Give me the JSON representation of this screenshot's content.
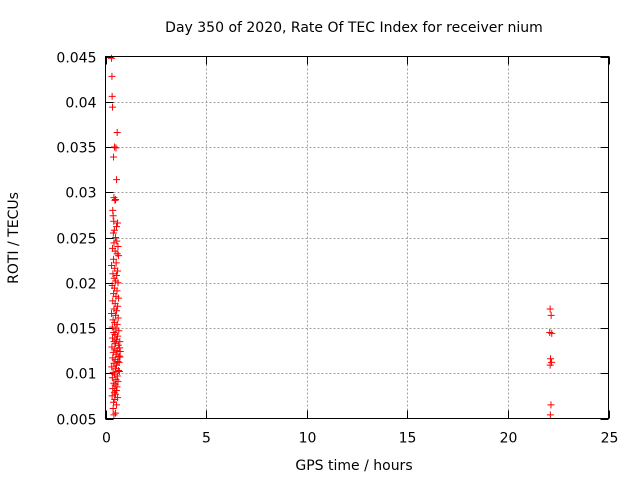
{
  "chart_data": {
    "type": "scatter",
    "title": "Day 350 of 2020, Rate Of TEC Index for receiver nium",
    "xlabel": "GPS time / hours",
    "ylabel": "ROTI / TECUs",
    "xlim": [
      0,
      25
    ],
    "ylim": [
      0.005,
      0.045
    ],
    "xticks": [
      0,
      5,
      10,
      15,
      20,
      25
    ],
    "xtick_labels": [
      "0",
      "5",
      "10",
      "15",
      "20",
      "25"
    ],
    "yticks": [
      0.005,
      0.01,
      0.015,
      0.02,
      0.025,
      0.03,
      0.035,
      0.04,
      0.045
    ],
    "ytick_labels": [
      "0.005",
      "0.01",
      "0.015",
      "0.02",
      "0.025",
      "0.03",
      "0.035",
      "0.04",
      "0.045"
    ],
    "grid": true,
    "marker": "plus",
    "marker_color": "#ff0000",
    "series": [
      {
        "name": "ROTI",
        "points": [
          [
            0.3,
            0.0448
          ],
          [
            0.32,
            0.0428
          ],
          [
            0.33,
            0.0406
          ],
          [
            0.35,
            0.0394
          ],
          [
            0.58,
            0.0366
          ],
          [
            0.45,
            0.035
          ],
          [
            0.52,
            0.0349
          ],
          [
            0.4,
            0.0339
          ],
          [
            0.55,
            0.0314
          ],
          [
            0.42,
            0.0294
          ],
          [
            0.5,
            0.0292
          ],
          [
            0.47,
            0.0291
          ],
          [
            0.36,
            0.028
          ],
          [
            0.38,
            0.0274
          ],
          [
            0.41,
            0.0268
          ],
          [
            0.6,
            0.0266
          ],
          [
            0.55,
            0.0262
          ],
          [
            0.44,
            0.0258
          ],
          [
            0.39,
            0.0255
          ],
          [
            0.5,
            0.025
          ],
          [
            0.56,
            0.0246
          ],
          [
            0.42,
            0.0244
          ],
          [
            0.62,
            0.024
          ],
          [
            0.35,
            0.0238
          ],
          [
            0.48,
            0.0235
          ],
          [
            0.58,
            0.0232
          ],
          [
            0.65,
            0.023
          ],
          [
            0.4,
            0.0226
          ],
          [
            0.53,
            0.0222
          ],
          [
            0.3,
            0.0219
          ],
          [
            0.46,
            0.0216
          ],
          [
            0.6,
            0.0213
          ],
          [
            0.37,
            0.021
          ],
          [
            0.55,
            0.0208
          ],
          [
            0.43,
            0.0205
          ],
          [
            0.5,
            0.0202
          ],
          [
            0.62,
            0.02
          ],
          [
            0.33,
            0.0197
          ],
          [
            0.45,
            0.0194
          ],
          [
            0.57,
            0.0191
          ],
          [
            0.4,
            0.0188
          ],
          [
            0.52,
            0.0185
          ],
          [
            0.65,
            0.0183
          ],
          [
            0.36,
            0.018
          ],
          [
            0.48,
            0.0177
          ],
          [
            0.6,
            0.0174
          ],
          [
            0.42,
            0.0171
          ],
          [
            0.55,
            0.0169
          ],
          [
            0.3,
            0.0166
          ],
          [
            0.5,
            0.0164
          ],
          [
            0.63,
            0.0161
          ],
          [
            0.38,
            0.0159
          ],
          [
            0.45,
            0.0156
          ],
          [
            0.58,
            0.0154
          ],
          [
            0.34,
            0.0151
          ],
          [
            0.52,
            0.0149
          ],
          [
            0.66,
            0.0147
          ],
          [
            0.41,
            0.0145
          ],
          [
            0.47,
            0.0143
          ],
          [
            0.6,
            0.0141
          ],
          [
            0.35,
            0.0139
          ],
          [
            0.55,
            0.0137
          ],
          [
            0.43,
            0.0135
          ],
          [
            0.5,
            0.0133
          ],
          [
            0.64,
            0.0131
          ],
          [
            0.32,
            0.0129
          ],
          [
            0.46,
            0.0127
          ],
          [
            0.58,
            0.0125
          ],
          [
            0.39,
            0.0123
          ],
          [
            0.53,
            0.0121
          ],
          [
            0.67,
            0.0119
          ],
          [
            0.36,
            0.0117
          ],
          [
            0.48,
            0.0115
          ],
          [
            0.61,
            0.0113
          ],
          [
            0.42,
            0.0111
          ],
          [
            0.55,
            0.0109
          ],
          [
            0.31,
            0.0107
          ],
          [
            0.5,
            0.0105
          ],
          [
            0.65,
            0.0103
          ],
          [
            0.38,
            0.0101
          ],
          [
            0.45,
            0.0099
          ],
          [
            0.59,
            0.0097
          ],
          [
            0.34,
            0.0095
          ],
          [
            0.52,
            0.0093
          ],
          [
            0.62,
            0.0091
          ],
          [
            0.41,
            0.0089
          ],
          [
            0.48,
            0.0087
          ],
          [
            0.57,
            0.0085
          ],
          [
            0.36,
            0.0083
          ],
          [
            0.54,
            0.0081
          ],
          [
            0.44,
            0.0079
          ],
          [
            0.5,
            0.0077
          ],
          [
            0.33,
            0.0075
          ],
          [
            0.6,
            0.0073
          ],
          [
            0.46,
            0.0071
          ],
          [
            0.4,
            0.0068
          ],
          [
            0.55,
            0.0065
          ],
          [
            0.38,
            0.0061
          ],
          [
            0.5,
            0.0056
          ],
          [
            0.42,
            0.0054
          ],
          [
            0.7,
            0.0128
          ],
          [
            0.72,
            0.0118
          ],
          [
            0.68,
            0.0112
          ],
          [
            0.71,
            0.0135
          ],
          [
            0.69,
            0.0102
          ],
          [
            0.73,
            0.0124
          ],
          [
            22.1,
            0.0171
          ],
          [
            22.15,
            0.0164
          ],
          [
            22.08,
            0.0145
          ],
          [
            22.18,
            0.0144
          ],
          [
            22.12,
            0.0116
          ],
          [
            22.17,
            0.0112
          ],
          [
            22.1,
            0.0109
          ],
          [
            22.14,
            0.0065
          ],
          [
            22.11,
            0.0054
          ]
        ]
      }
    ]
  }
}
